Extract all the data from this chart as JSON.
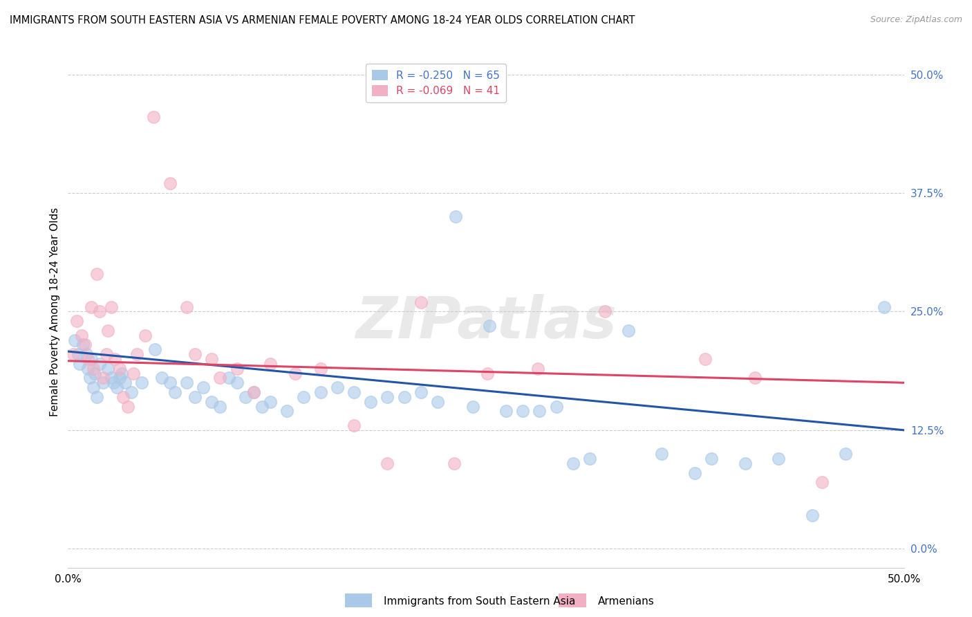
{
  "title": "IMMIGRANTS FROM SOUTH EASTERN ASIA VS ARMENIAN FEMALE POVERTY AMONG 18-24 YEAR OLDS CORRELATION CHART",
  "source": "Source: ZipAtlas.com",
  "ylabel": "Female Poverty Among 18-24 Year Olds",
  "ytick_labels": [
    "0.0%",
    "12.5%",
    "25.0%",
    "37.5%",
    "50.0%"
  ],
  "ytick_values": [
    0.0,
    12.5,
    25.0,
    37.5,
    50.0
  ],
  "xlim": [
    0.0,
    50.0
  ],
  "ylim": [
    -2.0,
    52.0
  ],
  "watermark": "ZIPatlas",
  "blue_color": "#aac8e8",
  "pink_color": "#f2b0c4",
  "blue_line_color": "#2255aa",
  "pink_line_color": "#dd4466",
  "blue_scatter": [
    [
      0.4,
      22.0
    ],
    [
      0.6,
      20.5
    ],
    [
      0.7,
      19.5
    ],
    [
      0.9,
      21.5
    ],
    [
      1.1,
      20.5
    ],
    [
      1.2,
      19.0
    ],
    [
      1.3,
      18.0
    ],
    [
      1.4,
      20.0
    ],
    [
      1.5,
      17.0
    ],
    [
      1.6,
      18.5
    ],
    [
      1.7,
      16.0
    ],
    [
      1.9,
      19.5
    ],
    [
      2.1,
      17.5
    ],
    [
      2.4,
      19.0
    ],
    [
      2.6,
      18.0
    ],
    [
      2.7,
      17.5
    ],
    [
      2.9,
      17.0
    ],
    [
      3.1,
      18.0
    ],
    [
      3.2,
      18.5
    ],
    [
      3.4,
      17.5
    ],
    [
      3.8,
      16.5
    ],
    [
      4.4,
      17.5
    ],
    [
      5.2,
      21.0
    ],
    [
      5.6,
      18.0
    ],
    [
      6.1,
      17.5
    ],
    [
      6.4,
      16.5
    ],
    [
      7.1,
      17.5
    ],
    [
      7.6,
      16.0
    ],
    [
      8.1,
      17.0
    ],
    [
      8.6,
      15.5
    ],
    [
      9.1,
      15.0
    ],
    [
      9.6,
      18.0
    ],
    [
      10.1,
      17.5
    ],
    [
      10.6,
      16.0
    ],
    [
      11.1,
      16.5
    ],
    [
      11.6,
      15.0
    ],
    [
      12.1,
      15.5
    ],
    [
      13.1,
      14.5
    ],
    [
      14.1,
      16.0
    ],
    [
      15.1,
      16.5
    ],
    [
      16.1,
      17.0
    ],
    [
      17.1,
      16.5
    ],
    [
      18.1,
      15.5
    ],
    [
      19.1,
      16.0
    ],
    [
      20.1,
      16.0
    ],
    [
      21.1,
      16.5
    ],
    [
      22.1,
      15.5
    ],
    [
      23.2,
      35.0
    ],
    [
      24.2,
      15.0
    ],
    [
      25.2,
      23.5
    ],
    [
      26.2,
      14.5
    ],
    [
      27.2,
      14.5
    ],
    [
      28.2,
      14.5
    ],
    [
      29.2,
      15.0
    ],
    [
      30.2,
      9.0
    ],
    [
      31.2,
      9.5
    ],
    [
      33.5,
      23.0
    ],
    [
      35.5,
      10.0
    ],
    [
      37.5,
      8.0
    ],
    [
      38.5,
      9.5
    ],
    [
      40.5,
      9.0
    ],
    [
      42.5,
      9.5
    ],
    [
      44.5,
      3.5
    ],
    [
      46.5,
      10.0
    ],
    [
      48.8,
      25.5
    ]
  ],
  "pink_scatter": [
    [
      0.3,
      20.5
    ],
    [
      0.5,
      24.0
    ],
    [
      0.8,
      22.5
    ],
    [
      1.0,
      21.5
    ],
    [
      1.2,
      20.0
    ],
    [
      1.4,
      25.5
    ],
    [
      1.5,
      19.0
    ],
    [
      1.7,
      29.0
    ],
    [
      1.9,
      25.0
    ],
    [
      2.1,
      18.0
    ],
    [
      2.3,
      20.5
    ],
    [
      2.4,
      23.0
    ],
    [
      2.6,
      25.5
    ],
    [
      2.8,
      20.0
    ],
    [
      3.1,
      19.0
    ],
    [
      3.3,
      16.0
    ],
    [
      3.6,
      15.0
    ],
    [
      3.9,
      18.5
    ],
    [
      4.1,
      20.5
    ],
    [
      4.6,
      22.5
    ],
    [
      5.1,
      45.5
    ],
    [
      6.1,
      38.5
    ],
    [
      7.1,
      25.5
    ],
    [
      7.6,
      20.5
    ],
    [
      8.6,
      20.0
    ],
    [
      9.1,
      18.0
    ],
    [
      10.1,
      19.0
    ],
    [
      11.1,
      16.5
    ],
    [
      12.1,
      19.5
    ],
    [
      13.6,
      18.5
    ],
    [
      15.1,
      19.0
    ],
    [
      17.1,
      13.0
    ],
    [
      19.1,
      9.0
    ],
    [
      21.1,
      26.0
    ],
    [
      23.1,
      9.0
    ],
    [
      25.1,
      18.5
    ],
    [
      28.1,
      19.0
    ],
    [
      32.1,
      25.0
    ],
    [
      38.1,
      20.0
    ],
    [
      41.1,
      18.0
    ],
    [
      45.1,
      7.0
    ]
  ],
  "blue_regression": {
    "x_start": 0.0,
    "y_start": 20.8,
    "x_end": 50.0,
    "y_end": 12.5
  },
  "pink_regression": {
    "x_start": 0.0,
    "y_start": 19.8,
    "x_end": 50.0,
    "y_end": 17.5
  }
}
